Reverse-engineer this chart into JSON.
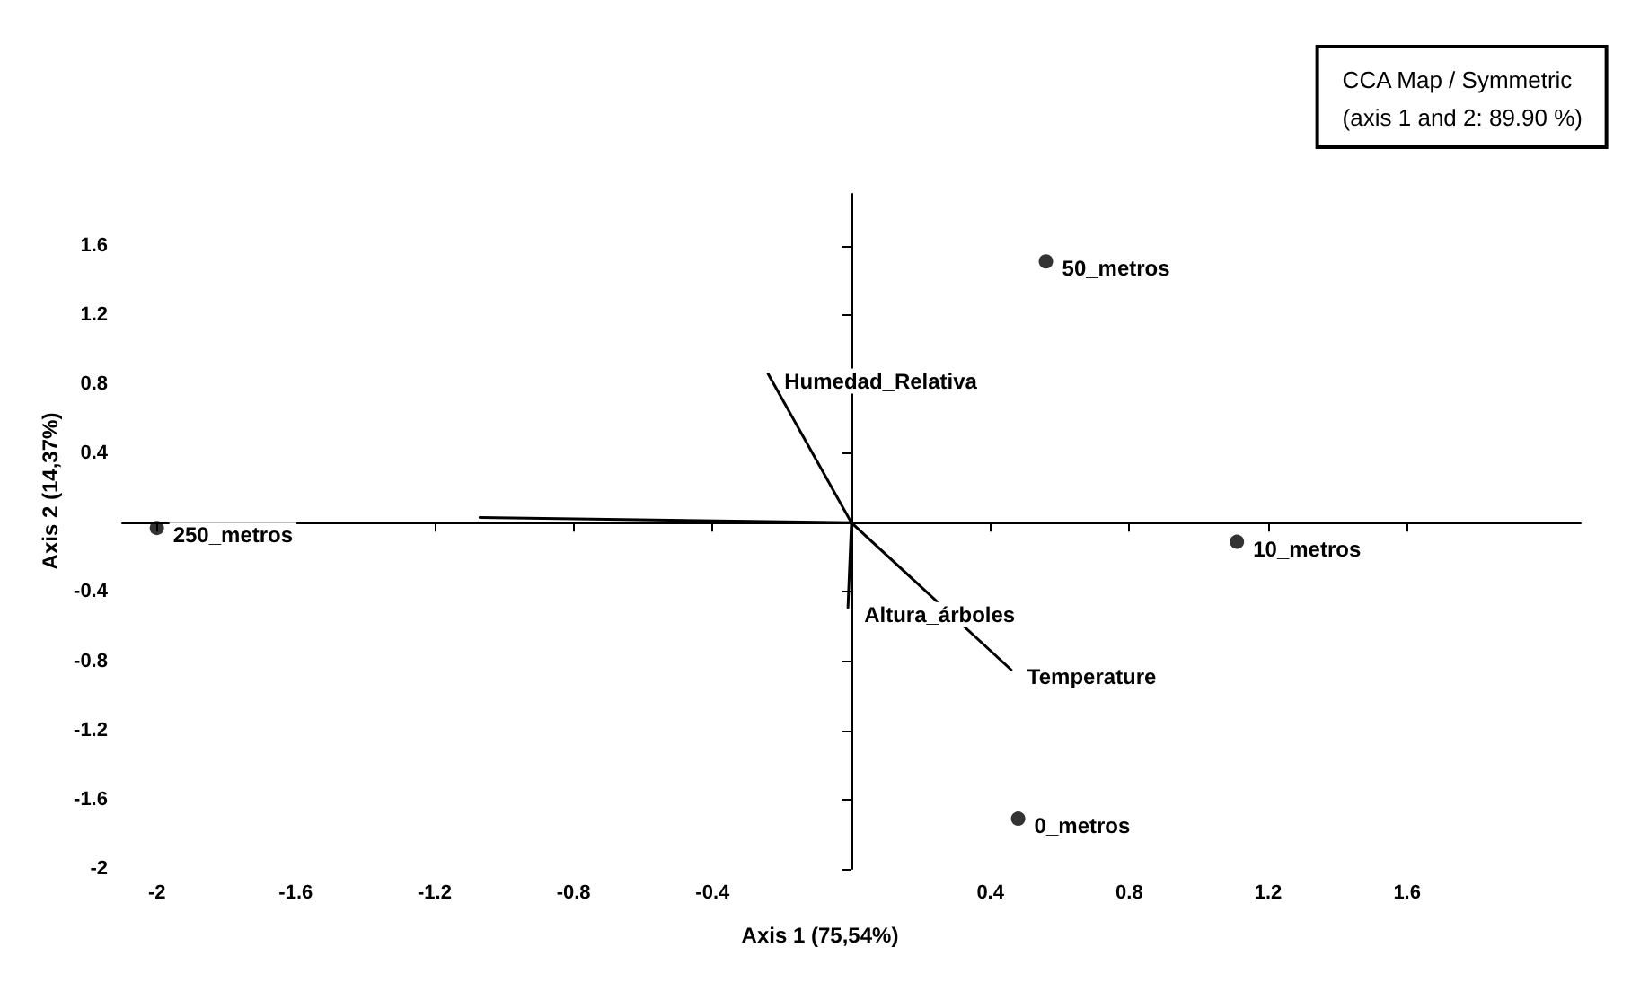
{
  "chart_data": {
    "type": "scatter",
    "title": "CCA Map / Symmetric",
    "subtitle": "(axis 1 and 2: 89.90 %)",
    "xlabel": "Axis 1 (75,54%)",
    "ylabel": "Axis 2 (14,37%)",
    "xlim": [
      -2.1,
      2.1
    ],
    "ylim": [
      -2.0,
      1.9
    ],
    "xticks": [
      -2,
      -1.6,
      -1.2,
      -0.8,
      -0.4,
      0.4,
      0.8,
      1.2,
      1.6
    ],
    "yticks": [
      -2,
      -1.6,
      -1.2,
      -0.8,
      -0.4,
      0.4,
      0.8,
      1.2,
      1.6
    ],
    "grid": false,
    "legend": false,
    "series": [
      {
        "color": "#000000",
        "marker": "circle",
        "x": [
          0.56,
          -2.0,
          1.11,
          0.48
        ],
        "values": [
          1.51,
          -0.03,
          -0.11,
          -1.71
        ]
      },
      {
        "type": "line",
        "color": "#000000",
        "marker": "none",
        "line_style": "solid",
        "x": [
          0,
          -0.24,
          null,
          0,
          0.46,
          null,
          0,
          -0.01,
          null,
          0,
          -1.07
        ],
        "values": [
          0,
          0.86,
          null,
          0,
          -0.85,
          null,
          0,
          -0.49,
          null,
          0,
          0.03
        ]
      }
    ],
    "annotations": [
      {
        "text": "50_metros",
        "x": 0.56,
        "y": 1.51
      },
      {
        "text": "250_metros",
        "x": -2.0,
        "y": -0.03
      },
      {
        "text": "10_metros",
        "x": 1.11,
        "y": -0.11
      },
      {
        "text": "0_metros",
        "x": 0.48,
        "y": -1.71
      },
      {
        "text": "Humedad_Relativa",
        "x": -0.24,
        "y": 0.86
      },
      {
        "text": "Temperature",
        "x": 0.46,
        "y": -0.85
      },
      {
        "text": "Altura_árboles",
        "x": -0.01,
        "y": -0.49
      }
    ]
  }
}
